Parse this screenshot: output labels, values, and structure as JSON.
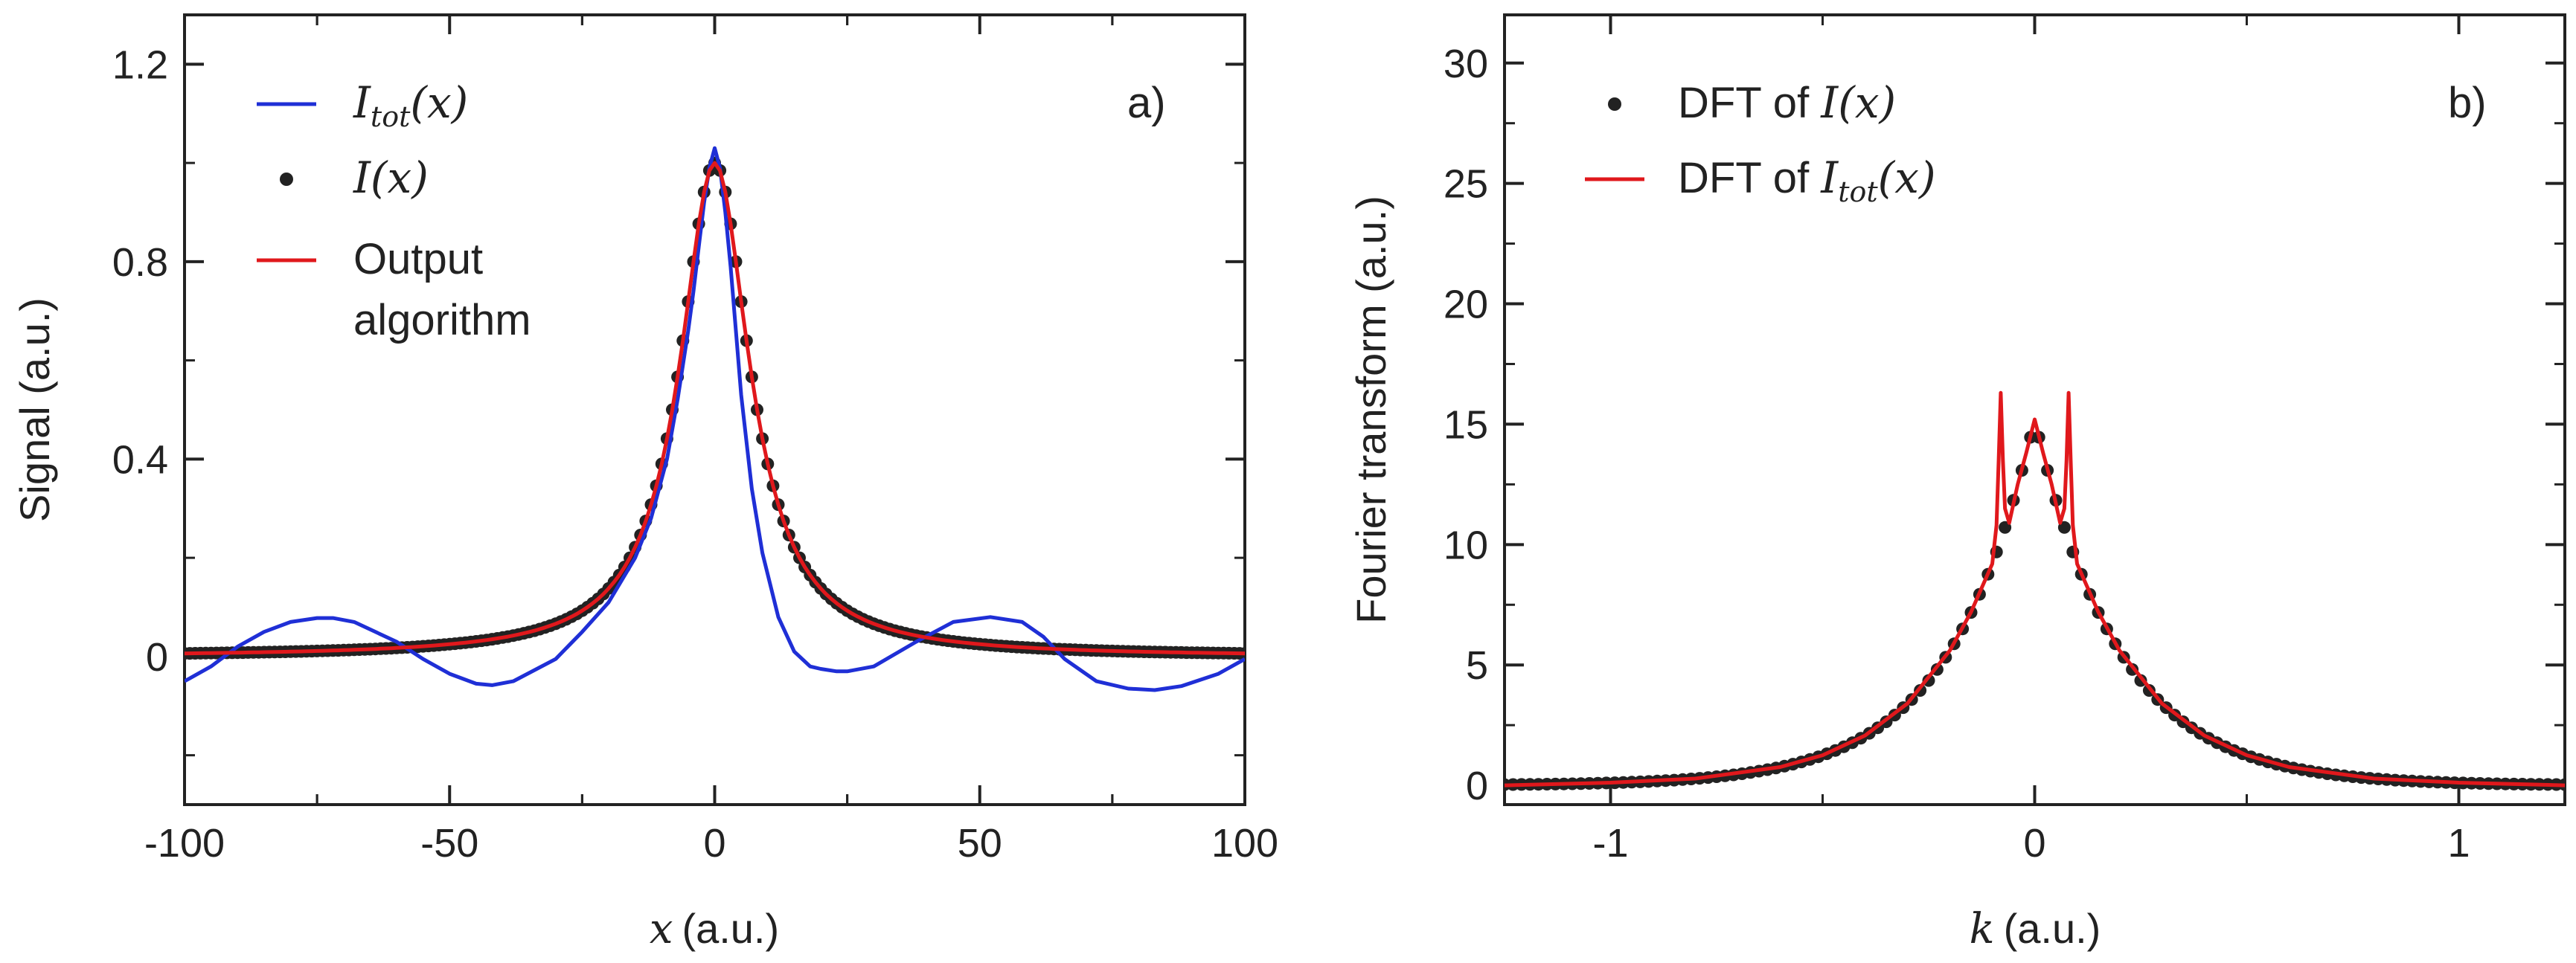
{
  "chart_data": [
    {
      "panel": "a)",
      "type": "line",
      "xlabel": "(a.u.)",
      "xlabel_var": "x",
      "ylabel": "Signal (a.u.)",
      "xlim": [
        -100,
        100
      ],
      "ylim": [
        -0.3,
        1.3
      ],
      "xticks": [
        -100,
        -50,
        0,
        50,
        100
      ],
      "xtick_labels": [
        "-100",
        "-50",
        "0",
        "50",
        "100"
      ],
      "yticks": [
        0,
        0.4,
        0.8,
        1.2
      ],
      "ytick_labels": [
        "0",
        "0.4",
        "0.8",
        "1.2"
      ],
      "legend_position": "top-left",
      "series": [
        {
          "name": "I_tot(x)",
          "legend_main": "I",
          "legend_sub": "tot",
          "legend_arg": "(x)",
          "style": "line",
          "color": "#1f2fd6",
          "x": [
            -100,
            -95,
            -90,
            -85,
            -80,
            -75,
            -72,
            -68,
            -60,
            -55,
            -50,
            -45,
            -42,
            -38,
            -30,
            -25,
            -20,
            -15,
            -12,
            -9,
            -7,
            -5,
            -4,
            -3,
            -2,
            -1,
            0,
            1,
            2,
            3,
            4,
            5,
            7,
            9,
            12,
            15,
            18,
            20,
            23,
            25,
            30,
            38,
            45,
            52,
            58,
            62,
            66,
            72,
            78,
            83,
            88,
            95,
            100
          ],
          "y": [
            -0.05,
            -0.02,
            0.02,
            0.05,
            0.07,
            0.078,
            0.078,
            0.07,
            0.03,
            -0.005,
            -0.035,
            -0.055,
            -0.058,
            -0.05,
            -0.005,
            0.05,
            0.11,
            0.2,
            0.28,
            0.4,
            0.52,
            0.66,
            0.74,
            0.83,
            0.92,
            0.99,
            1.03,
            0.99,
            0.9,
            0.79,
            0.66,
            0.53,
            0.34,
            0.21,
            0.08,
            0.01,
            -0.02,
            -0.025,
            -0.03,
            -0.03,
            -0.02,
            0.03,
            0.07,
            0.08,
            0.07,
            0.04,
            -0.005,
            -0.05,
            -0.065,
            -0.068,
            -0.06,
            -0.035,
            -0.005
          ]
        },
        {
          "name": "I(x)",
          "legend_main": "I",
          "legend_sub": "",
          "legend_arg": "(x)",
          "style": "dots",
          "color": "#222222",
          "gamma": 8,
          "amplitude": 1.0,
          "x_range": [
            -100,
            100
          ],
          "x_step": 1
        },
        {
          "name": "Output algorithm",
          "legend_line1": "Output",
          "legend_line2": "algorithm",
          "style": "line",
          "color": "#e0181c",
          "gamma": 8,
          "amplitude": 1.0,
          "x_range": [
            -100,
            100
          ],
          "x_step": 1
        }
      ]
    },
    {
      "panel": "b)",
      "type": "line",
      "xlabel": "(a.u.)",
      "xlabel_var": "k",
      "ylabel": "Fourier transform (a.u.)",
      "xlim": [
        -1.25,
        1.25
      ],
      "ylim": [
        -0.8,
        32
      ],
      "xticks": [
        -1,
        0,
        1
      ],
      "xtick_labels": [
        "-1",
        "0",
        "1"
      ],
      "yticks": [
        0,
        5,
        10,
        15,
        20,
        25,
        30
      ],
      "ytick_labels": [
        "0",
        "5",
        "10",
        "15",
        "20",
        "25",
        "30"
      ],
      "legend_position": "top-left",
      "series": [
        {
          "name": "DFT of I(x)",
          "legend_prefix": "DFT of ",
          "legend_main": "I",
          "legend_sub": "",
          "legend_arg": "(x)",
          "style": "dots",
          "color": "#222222",
          "peak": 15.2,
          "decay": 5.0,
          "x_range": [
            -1.25,
            1.25
          ],
          "x_step": 0.02
        },
        {
          "name": "DFT of I_tot(x)",
          "legend_prefix": "DFT of ",
          "legend_main": "I",
          "legend_sub": "tot",
          "legend_arg": "(x)",
          "style": "line",
          "color": "#e0181c",
          "x": [
            -1.25,
            -1.0,
            -0.8,
            -0.6,
            -0.5,
            -0.4,
            -0.3,
            -0.2,
            -0.15,
            -0.12,
            -0.1,
            -0.09,
            -0.085,
            -0.08,
            -0.075,
            -0.07,
            -0.06,
            -0.04,
            -0.02,
            0,
            0.02,
            0.04,
            0.06,
            0.07,
            0.075,
            0.08,
            0.085,
            0.09,
            0.1,
            0.12,
            0.15,
            0.2,
            0.3,
            0.4,
            0.5,
            0.6,
            0.8,
            1.0,
            1.25
          ],
          "y": [
            0.0,
            0.11,
            0.28,
            0.76,
            1.25,
            2.07,
            3.4,
            5.6,
            7.2,
            8.4,
            9.2,
            10.8,
            13.5,
            16.3,
            13.5,
            11.5,
            10.9,
            12.5,
            13.8,
            15.2,
            13.8,
            12.5,
            10.9,
            11.5,
            13.5,
            16.3,
            13.5,
            10.8,
            9.2,
            8.4,
            7.2,
            5.6,
            3.4,
            2.07,
            1.25,
            0.76,
            0.28,
            0.11,
            0.0
          ]
        }
      ]
    }
  ]
}
